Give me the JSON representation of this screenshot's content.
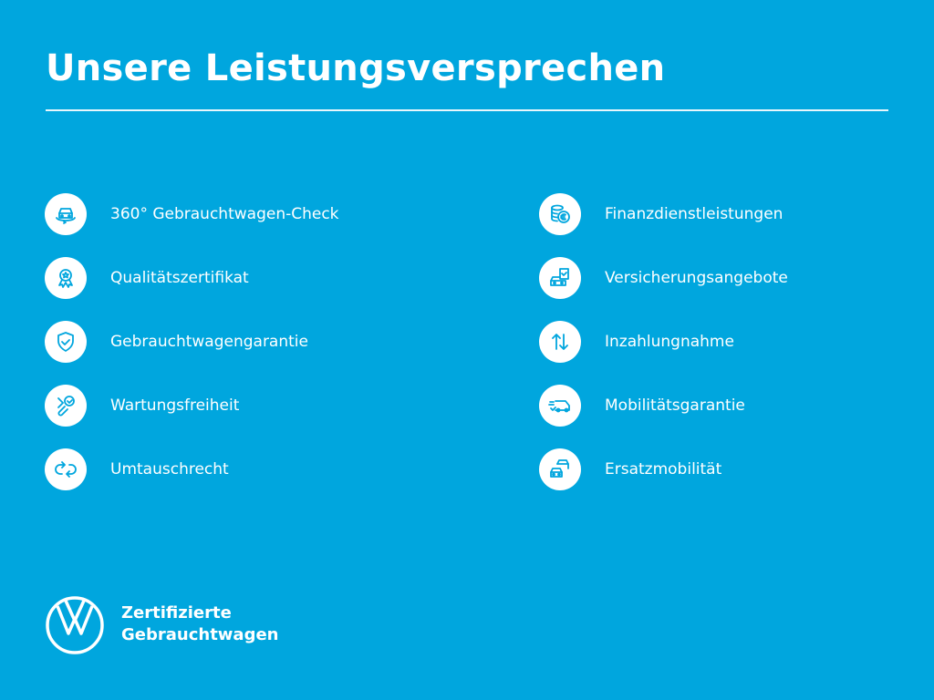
{
  "title": "Unsere Leistungsversprechen",
  "colors": {
    "background": "#00a6de",
    "foreground": "#ffffff"
  },
  "left_items": [
    {
      "label": "360° Gebrauchtwagen-Check",
      "icon": "car-360-icon"
    },
    {
      "label": "Qualitätszertifikat",
      "icon": "award-ribbon-icon"
    },
    {
      "label": "Gebrauchtwagengarantie",
      "icon": "shield-check-icon"
    },
    {
      "label": "Wartungsfreiheit",
      "icon": "wrench-check-icon"
    },
    {
      "label": "Umtauschrecht",
      "icon": "exchange-arrows-icon"
    }
  ],
  "right_items": [
    {
      "label": "Finanzdienstleistungen",
      "icon": "coins-euro-icon"
    },
    {
      "label": "Versicherungsangebote",
      "icon": "car-document-icon"
    },
    {
      "label": "Inzahlungnahme",
      "icon": "up-down-arrows-icon"
    },
    {
      "label": "Mobilitätsgarantie",
      "icon": "van-check-icon"
    },
    {
      "label": "Ersatzmobilität",
      "icon": "two-cars-icon"
    }
  ],
  "brand": {
    "line1": "Zertifizierte",
    "line2": "Gebrauchtwagen",
    "logo": "VW"
  }
}
